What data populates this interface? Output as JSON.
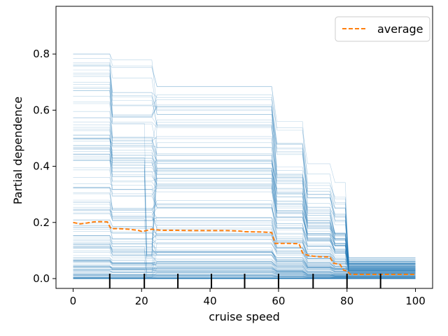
{
  "chart_data": {
    "type": "line",
    "title": "",
    "xlabel": "cruise speed",
    "ylabel": "Partial dependence",
    "xlim": [
      -5,
      105
    ],
    "ylim": [
      -0.035,
      0.97
    ],
    "xticks": [
      0,
      20,
      40,
      60,
      80,
      100
    ],
    "xtick_labels": [
      "0",
      "20",
      "40",
      "60",
      "80",
      "100"
    ],
    "yticks": [
      0.0,
      0.2,
      0.4,
      0.6,
      0.8
    ],
    "ytick_labels": [
      "0.0",
      "0.2",
      "0.4",
      "0.6",
      "0.8"
    ],
    "deciles": [
      10.7,
      20.8,
      30.6,
      40.4,
      50.1,
      60.0,
      70.1,
      80.0,
      89.8
    ],
    "grid": false,
    "legend": {
      "position": "top-right",
      "entries": [
        "average"
      ]
    },
    "colors": {
      "ice": "#1f77b4",
      "average": "#ff7f0e"
    },
    "x": [
      0,
      2,
      4,
      6,
      8,
      10,
      11,
      13,
      16,
      19,
      20,
      21,
      22,
      23,
      24,
      26,
      30,
      35,
      40,
      45,
      49,
      50,
      55,
      58,
      59,
      60,
      63,
      66,
      67,
      68,
      70,
      72,
      75,
      76,
      78,
      79,
      80,
      81,
      85,
      90,
      95,
      100
    ],
    "series": [
      {
        "name": "average",
        "values": [
          0.2,
          0.195,
          0.198,
          0.202,
          0.203,
          0.202,
          0.178,
          0.178,
          0.176,
          0.172,
          0.168,
          0.17,
          0.173,
          0.176,
          0.174,
          0.172,
          0.172,
          0.171,
          0.171,
          0.171,
          0.169,
          0.167,
          0.166,
          0.164,
          0.125,
          0.125,
          0.125,
          0.124,
          0.092,
          0.085,
          0.08,
          0.078,
          0.077,
          0.055,
          0.05,
          0.03,
          0.027,
          0.015,
          0.015,
          0.015,
          0.015,
          0.015
        ]
      }
    ]
  }
}
